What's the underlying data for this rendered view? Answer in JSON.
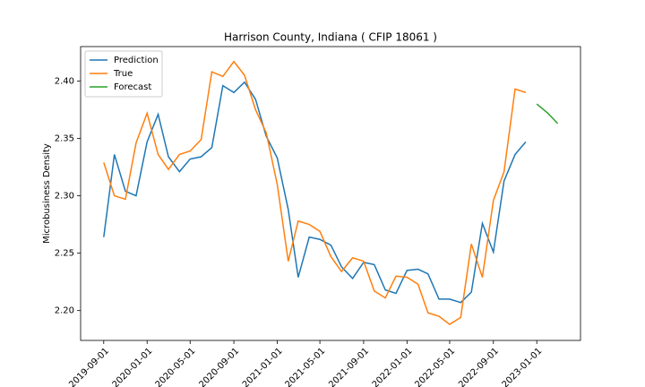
{
  "chart_data": {
    "type": "line",
    "title": "Harrison County, Indiana ( CFIP 18061 )",
    "y_label": "Microbusiness Density",
    "x": [
      "2019-09-01",
      "2019-10-01",
      "2019-11-01",
      "2019-12-01",
      "2020-01-01",
      "2020-02-01",
      "2020-03-01",
      "2020-04-01",
      "2020-05-01",
      "2020-06-01",
      "2020-07-01",
      "2020-08-01",
      "2020-09-01",
      "2020-10-01",
      "2020-11-01",
      "2020-12-01",
      "2021-01-01",
      "2021-02-01",
      "2021-03-01",
      "2021-04-01",
      "2021-05-01",
      "2021-06-01",
      "2021-07-01",
      "2021-08-01",
      "2021-09-01",
      "2021-10-01",
      "2021-11-01",
      "2021-12-01",
      "2022-01-01",
      "2022-02-01",
      "2022-03-01",
      "2022-04-01",
      "2022-05-01",
      "2022-06-01",
      "2022-07-01",
      "2022-08-01",
      "2022-09-01",
      "2022-10-01",
      "2022-11-01",
      "2022-12-01",
      "2023-01-01",
      "2023-02-01",
      "2023-03-01"
    ],
    "series": [
      {
        "name": "Prediction",
        "color": "#1f77b4",
        "values": [
          2.264,
          2.336,
          2.304,
          2.3,
          2.347,
          2.371,
          2.334,
          2.321,
          2.332,
          2.334,
          2.342,
          2.396,
          2.39,
          2.399,
          2.384,
          2.352,
          2.333,
          2.288,
          2.229,
          2.264,
          2.262,
          2.257,
          2.238,
          2.228,
          2.242,
          2.24,
          2.218,
          2.215,
          2.235,
          2.236,
          2.232,
          2.21,
          2.21,
          2.207,
          2.216,
          2.276,
          2.251,
          2.313,
          2.336,
          2.347,
          null,
          null,
          null
        ]
      },
      {
        "name": "True",
        "color": "#ff7f0e",
        "values": [
          2.329,
          2.3,
          2.297,
          2.346,
          2.372,
          2.336,
          2.323,
          2.336,
          2.339,
          2.349,
          2.408,
          2.404,
          2.417,
          2.405,
          2.375,
          2.355,
          2.31,
          2.243,
          2.278,
          2.275,
          2.269,
          2.247,
          2.234,
          2.246,
          2.243,
          2.217,
          2.211,
          2.23,
          2.229,
          2.223,
          2.198,
          2.195,
          2.188,
          2.194,
          2.258,
          2.229,
          2.296,
          2.321,
          2.393,
          2.39,
          null,
          null,
          null
        ]
      },
      {
        "name": "Forecast",
        "color": "#2ca02c",
        "values": [
          null,
          null,
          null,
          null,
          null,
          null,
          null,
          null,
          null,
          null,
          null,
          null,
          null,
          null,
          null,
          null,
          null,
          null,
          null,
          null,
          null,
          null,
          null,
          null,
          null,
          null,
          null,
          null,
          null,
          null,
          null,
          null,
          null,
          null,
          null,
          null,
          null,
          null,
          null,
          null,
          2.38,
          2.372,
          2.363
        ]
      }
    ],
    "xlim": [
      "2019-06-28",
      "2023-05-04"
    ],
    "xticks": [
      "2019-09-01",
      "2020-01-01",
      "2020-05-01",
      "2020-09-01",
      "2021-01-01",
      "2021-05-01",
      "2021-09-01",
      "2022-01-01",
      "2022-05-01",
      "2022-09-01",
      "2023-01-01"
    ],
    "ylim": [
      2.174,
      2.43
    ],
    "yticks": [
      {
        "value": 2.2,
        "label": "2.20"
      },
      {
        "value": 2.25,
        "label": "2.25"
      },
      {
        "value": 2.3,
        "label": "2.30"
      },
      {
        "value": 2.35,
        "label": "2.35"
      },
      {
        "value": 2.4,
        "label": "2.40"
      }
    ],
    "legend": "upper left",
    "grid": false
  }
}
